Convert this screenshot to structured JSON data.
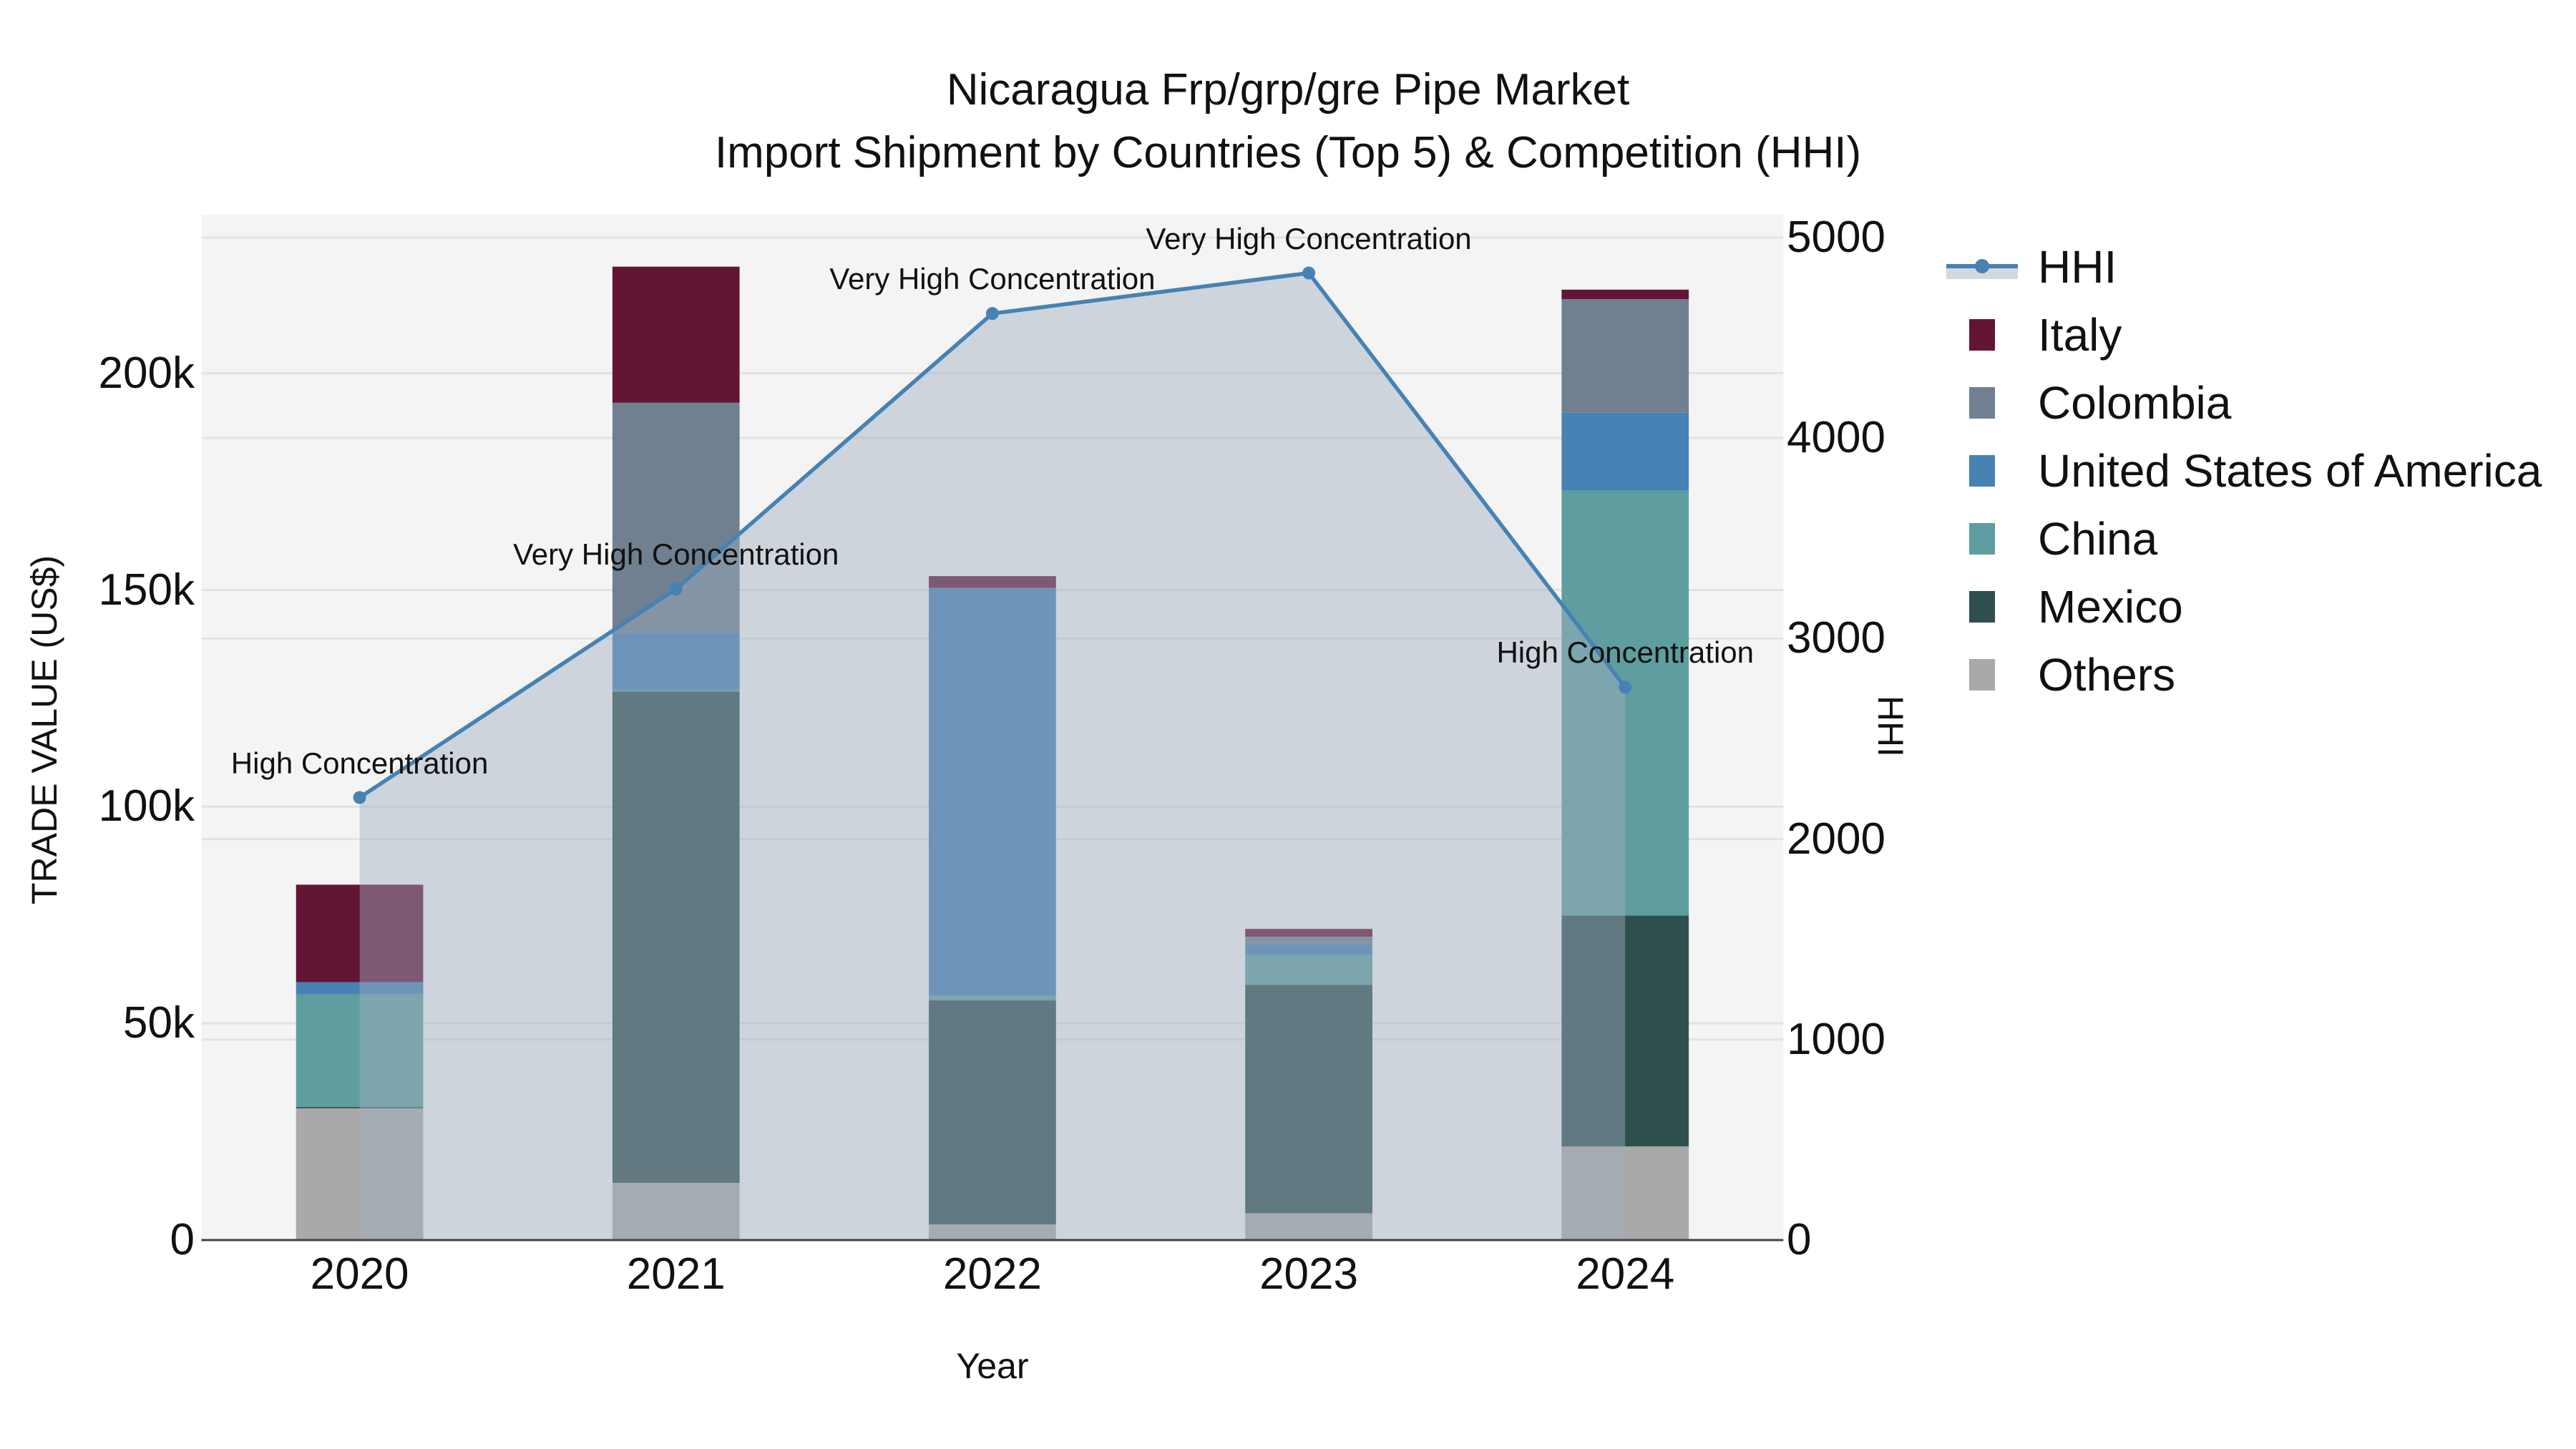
{
  "title": {
    "line1": "Nicaragua Frp/grp/gre Pipe Market",
    "line2": "Import Shipment by Countries (Top 5) & Competition (HHI)"
  },
  "axes": {
    "x_title": "Year",
    "y_left_title": "TRADE VALUE (US$)",
    "y_right_title": "HHI",
    "y_left_ticks": [
      "0",
      "50k",
      "100k",
      "150k",
      "200k"
    ],
    "y_left_tick_values": [
      0,
      50000,
      100000,
      150000,
      200000
    ],
    "y_right_ticks": [
      "0",
      "1000",
      "2000",
      "3000",
      "4000",
      "5000"
    ],
    "y_right_tick_values": [
      0,
      1000,
      2000,
      3000,
      4000,
      5000
    ],
    "x_ticks": [
      "2020",
      "2021",
      "2022",
      "2023",
      "2024"
    ]
  },
  "legend": {
    "items": [
      {
        "label": "HHI",
        "type": "line",
        "color": "#4682B4"
      },
      {
        "label": "Italy",
        "type": "bar",
        "color": "#631535"
      },
      {
        "label": "Colombia",
        "type": "bar",
        "color": "#708090"
      },
      {
        "label": "United States of America",
        "type": "bar",
        "color": "#4682B4"
      },
      {
        "label": "China",
        "type": "bar",
        "color": "#5F9EA0"
      },
      {
        "label": "Mexico",
        "type": "bar",
        "color": "#2F4F4F"
      },
      {
        "label": "Others",
        "type": "bar",
        "color": "#A9A9A9"
      }
    ]
  },
  "annotations": [
    {
      "year": "2020",
      "text": "High Concentration"
    },
    {
      "year": "2021",
      "text": "Very High Concentration"
    },
    {
      "year": "2022",
      "text": "Very High Concentration"
    },
    {
      "year": "2023",
      "text": "Very High Concentration"
    },
    {
      "year": "2024",
      "text": "High Concentration"
    }
  ],
  "chart_data": {
    "type": "bar",
    "subtype": "stacked bar + line (secondary axis)",
    "title": "Nicaragua Frp/grp/gre Pipe Market — Import Shipment by Countries (Top 5) & Competition (HHI)",
    "xlabel": "Year",
    "ylabel": "TRADE VALUE (US$)",
    "y2label": "HHI",
    "categories": [
      "2020",
      "2021",
      "2022",
      "2023",
      "2024"
    ],
    "stack_order_bottom_to_top": [
      "Others",
      "Mexico",
      "China",
      "United States of America",
      "Colombia",
      "Italy"
    ],
    "series": [
      {
        "name": "Others",
        "color": "#A9A9A9",
        "values": [
          30400,
          13200,
          3600,
          6200,
          21600
        ]
      },
      {
        "name": "Mexico",
        "color": "#2F4F4F",
        "values": [
          300,
          113400,
          51700,
          52700,
          53300
        ]
      },
      {
        "name": "China",
        "color": "#5F9EA0",
        "values": [
          26000,
          300,
          1100,
          6900,
          98000
        ]
      },
      {
        "name": "United States of America",
        "color": "#4682B4",
        "values": [
          2800,
          13300,
          94100,
          2400,
          18000
        ]
      },
      {
        "name": "Colombia",
        "color": "#708090",
        "values": [
          0,
          53000,
          0,
          1800,
          26200
        ]
      },
      {
        "name": "Italy",
        "color": "#631535",
        "values": [
          22500,
          31400,
          2700,
          1800,
          2200
        ]
      }
    ],
    "line_series": {
      "name": "HHI",
      "axis": "right",
      "color": "#4682B4",
      "fill": "tozeroy",
      "values": [
        2207,
        3247,
        4621,
        4823,
        2757
      ],
      "labels": [
        "High Concentration",
        "Very High Concentration",
        "Very High Concentration",
        "Very High Concentration",
        "High Concentration"
      ]
    },
    "ylim": [
      0,
      236600
    ],
    "y2lim": [
      0,
      5114
    ],
    "grid": true,
    "legend_position": "right"
  },
  "colors": {
    "plot_bg": "#f4f4f4",
    "grid": "#e2e2e2",
    "area_fill": "rgba(160,172,190,0.45)",
    "line": "#4682B4"
  }
}
